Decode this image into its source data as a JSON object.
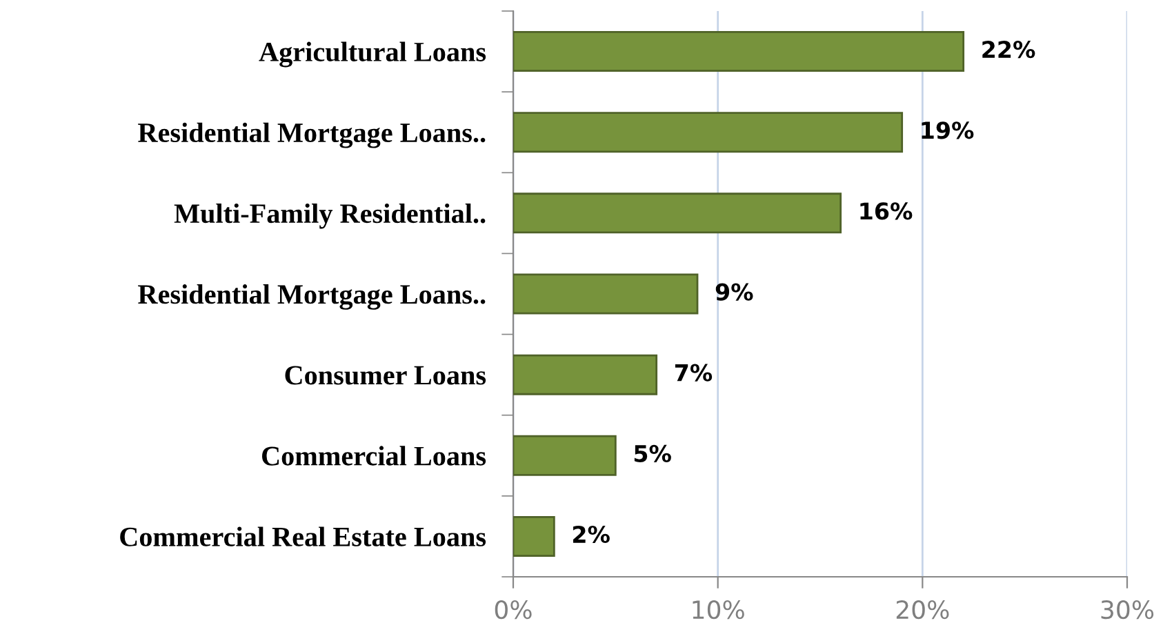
{
  "chart_data": {
    "type": "bar",
    "orientation": "horizontal",
    "categories": [
      "Agricultural Loans",
      "Residential Mortgage Loans..",
      "Multi-Family Residential..",
      "Residential Mortgage Loans..",
      "Consumer Loans",
      "Commercial Loans",
      "Commercial Real Estate Loans"
    ],
    "values": [
      22,
      19,
      16,
      9,
      7,
      5,
      2
    ],
    "color": "#77933c",
    "xlim": [
      0,
      30
    ],
    "xticks": [
      {
        "value": 0,
        "label": "0%"
      },
      {
        "value": 10,
        "label": "10%"
      },
      {
        "value": 20,
        "label": "20%"
      },
      {
        "value": 30,
        "label": "30%"
      }
    ],
    "value_labels": [
      "22%",
      "19%",
      "16%",
      "9%",
      "7%",
      "5%",
      "2%"
    ],
    "grid": "x",
    "legend": false
  }
}
